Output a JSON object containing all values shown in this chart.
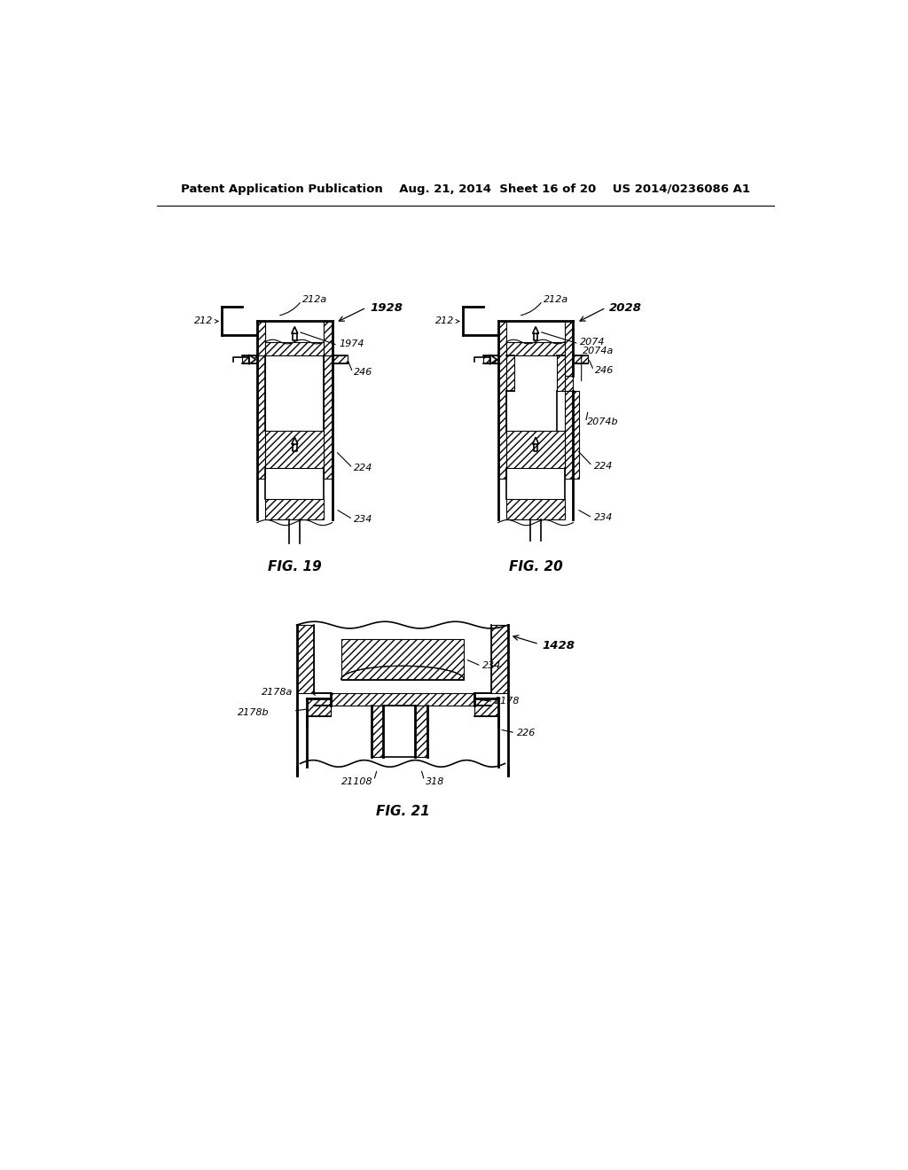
{
  "bg_color": "#ffffff",
  "header_text": "Patent Application Publication    Aug. 21, 2014  Sheet 16 of 20    US 2014/0236086 A1",
  "fig19_label": "FIG. 19",
  "fig20_label": "FIG. 20",
  "fig21_label": "FIG. 21"
}
